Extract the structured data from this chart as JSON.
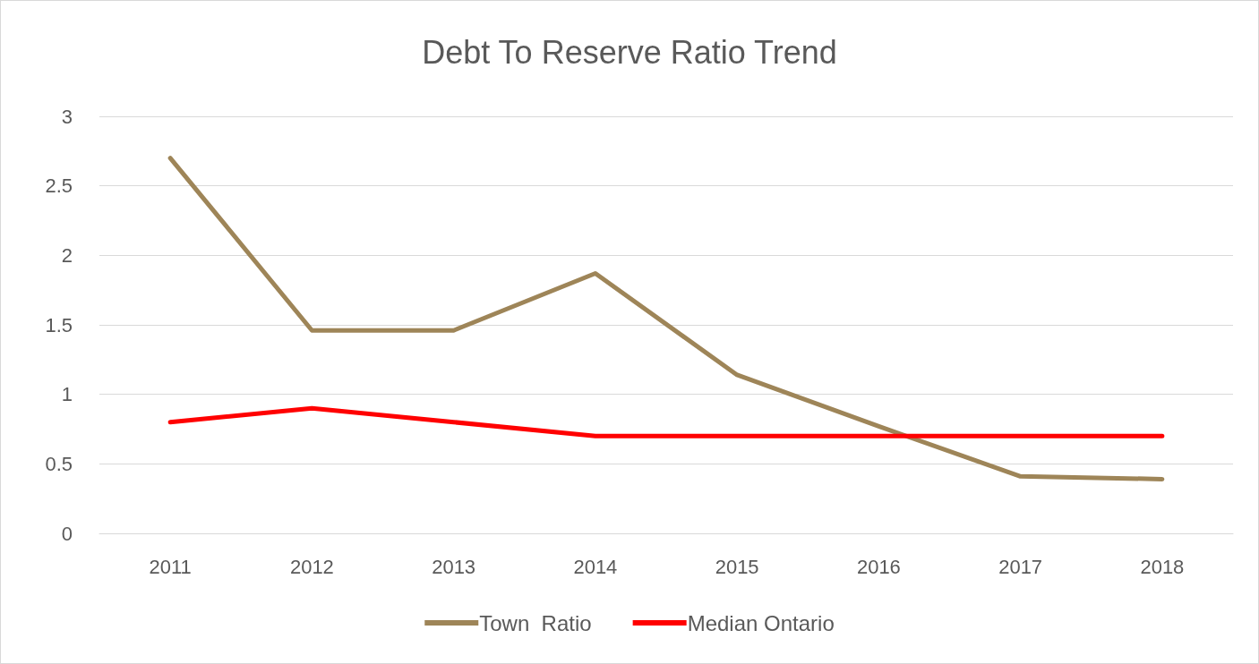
{
  "chart_data": {
    "type": "line",
    "title": "Debt To Reserve Ratio Trend",
    "categories": [
      "2011",
      "2012",
      "2013",
      "2014",
      "2015",
      "2016",
      "2017",
      "2018"
    ],
    "series": [
      {
        "name": "Town  Ratio",
        "color": "#9e8558",
        "values": [
          2.7,
          1.46,
          1.46,
          1.87,
          1.14,
          0.77,
          0.41,
          0.39
        ]
      },
      {
        "name": "Median Ontario",
        "color": "#ff0000",
        "values": [
          0.8,
          0.9,
          0.8,
          0.7,
          0.7,
          0.7,
          0.7,
          0.7
        ]
      }
    ],
    "ylim": [
      0,
      3
    ],
    "yticks": [
      0,
      0.5,
      1,
      1.5,
      2,
      2.5,
      3
    ],
    "grid": "y",
    "legend": "bottom",
    "marker": "none",
    "line_style": "solid"
  }
}
